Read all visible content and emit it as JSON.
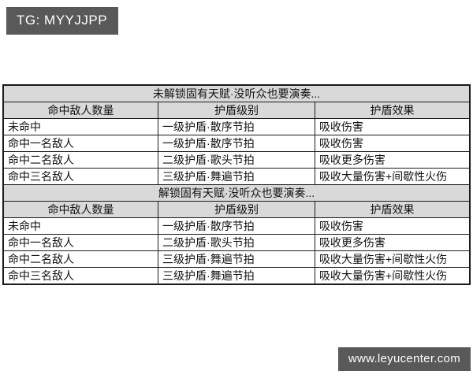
{
  "badges": {
    "tg": {
      "text": "TG: MYYJJPP",
      "bg": "#595959",
      "fg": "#ffffff"
    },
    "site": {
      "text": "www.leyucenter.com",
      "bg": "#595959",
      "fg": "#ffffff"
    }
  },
  "table": {
    "colors": {
      "header_bg": "#d9d9d9",
      "row_bg": "#ffffff",
      "border": "#1a1a1a",
      "text": "#111111"
    },
    "sections": [
      {
        "title": "未解锁固有天赋·没听众也要演奏...",
        "columns": [
          "命中敌人数量",
          "护盾级别",
          "护盾效果"
        ],
        "rows": [
          [
            "未命中",
            "一级护盾·散序节拍",
            "吸收伤害"
          ],
          [
            "命中一名敌人",
            "一级护盾·散序节拍",
            "吸收伤害"
          ],
          [
            "命中二名敌人",
            "二级护盾·歌头节拍",
            "吸收更多伤害"
          ],
          [
            "命中三名敌人",
            "三级护盾·舞遍节拍",
            "吸收大量伤害+间歇性火伤"
          ]
        ]
      },
      {
        "title": "解锁固有天赋·没听众也要演奏...",
        "columns": [
          "命中敌人数量",
          "护盾级别",
          "护盾效果"
        ],
        "rows": [
          [
            "未命中",
            "一级护盾·散序节拍",
            "吸收伤害"
          ],
          [
            "命中一名敌人",
            "二级护盾·歌头节拍",
            "吸收更多伤害"
          ],
          [
            "命中二名敌人",
            "三级护盾·舞遍节拍",
            "吸收大量伤害+间歇性火伤"
          ],
          [
            "命中三名敌人",
            "三级护盾·舞遍节拍",
            "吸收大量伤害+间歇性火伤"
          ]
        ]
      }
    ]
  }
}
